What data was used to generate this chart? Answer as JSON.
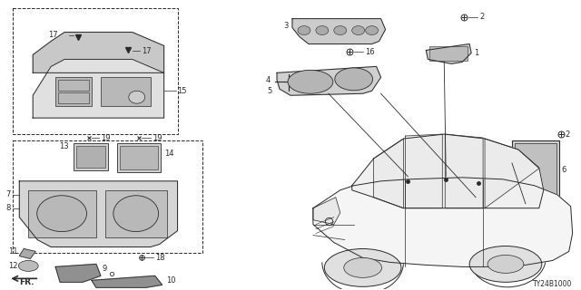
{
  "diagram_code": "TY24B1000",
  "background_color": "#ffffff",
  "line_color": "#2a2a2a",
  "fig_width": 6.4,
  "fig_height": 3.2,
  "dpi": 100
}
